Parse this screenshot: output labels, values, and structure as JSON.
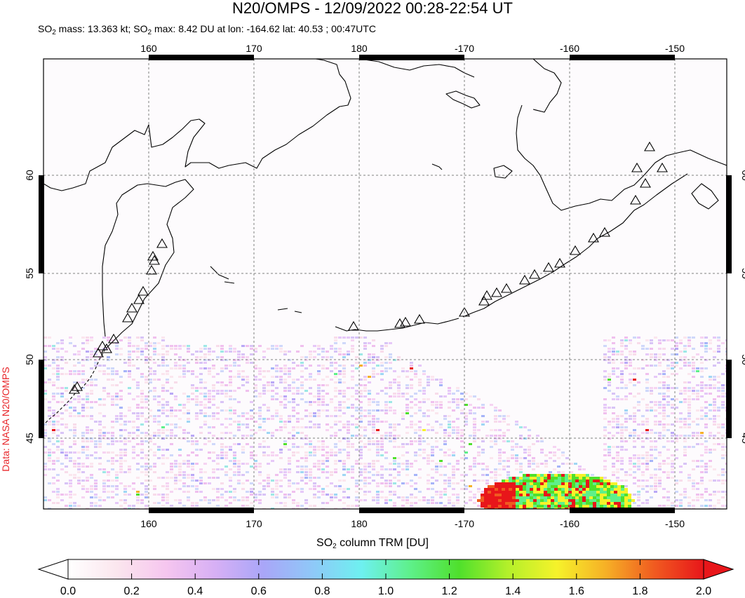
{
  "title": "N20/OMPS - 12/09/2022 00:28-22:54 UT",
  "subtitle": {
    "p1": "SO",
    "p1_sub": "2",
    "p2": " mass: 13.363 kt; SO",
    "p2_sub": "2",
    "p3": " max: 8.42 DU at lon: -164.62 lat: 40.53 ; 00:47UTC"
  },
  "credit": "Data: NASA N20/OMPS",
  "map": {
    "lon_ticks": [
      {
        "value": 160,
        "label": "160"
      },
      {
        "value": 170,
        "label": "170"
      },
      {
        "value": 180,
        "label": "180"
      },
      {
        "value": 190,
        "label": "-170"
      },
      {
        "value": 200,
        "label": "-160"
      },
      {
        "value": 210,
        "label": "-150"
      }
    ],
    "lat_ticks": [
      {
        "value": 60,
        "label": "60"
      },
      {
        "value": 55,
        "label": "55"
      },
      {
        "value": 50,
        "label": "50"
      },
      {
        "value": 45,
        "label": "45"
      }
    ],
    "grid": true
  },
  "colorbar": {
    "title_main": "SO",
    "title_sub": "2",
    "title_rest": " column TRM [DU]",
    "min": 0.0,
    "max": 2.0,
    "tick_labels": [
      "0.0",
      "0.2",
      "0.4",
      "0.6",
      "0.8",
      "1.0",
      "1.2",
      "1.4",
      "1.6",
      "1.8",
      "2.0"
    ],
    "colors": [
      "#ffffff",
      "#fbe6ee",
      "#f6c6ef",
      "#d7b0f5",
      "#a9a6f8",
      "#8fc8f8",
      "#6ef0f0",
      "#5ef08a",
      "#4fe02c",
      "#b4f02a",
      "#f6f22a",
      "#f6b026",
      "#f05a20",
      "#e8161a"
    ]
  },
  "colors": {
    "coast": "#000000",
    "frame_band": "#000000",
    "grid": "#808080"
  },
  "icons": [
    "volcano-triangle-icon"
  ]
}
